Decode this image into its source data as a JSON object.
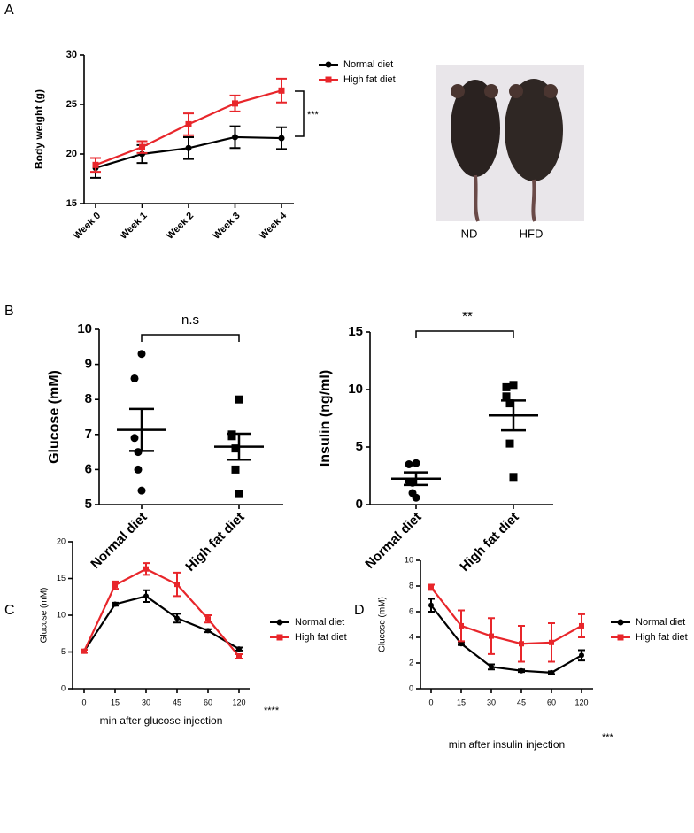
{
  "chart_data": [
    {
      "type": "line",
      "panel_label": "A",
      "y_label": "Body weight (g)",
      "categories": [
        "Week 0",
        "Week 1",
        "Week 2",
        "Week 3",
        "Week 4"
      ],
      "ylim": [
        15,
        30
      ],
      "yticks": [
        15,
        20,
        25,
        30
      ],
      "series": [
        {
          "name": "Normal diet",
          "color": "#000000",
          "marker": "circle",
          "values": [
            18.6,
            20.0,
            20.6,
            21.7,
            21.6
          ],
          "errors": [
            1.0,
            0.9,
            1.1,
            1.1,
            1.1
          ]
        },
        {
          "name": "High fat diet",
          "color": "#e8262b",
          "marker": "square",
          "values": [
            18.9,
            20.7,
            23.0,
            25.1,
            26.4
          ],
          "errors": [
            0.7,
            0.6,
            1.1,
            0.8,
            1.2
          ]
        }
      ],
      "annotation": "***"
    },
    {
      "type": "dot",
      "panel_label": "B",
      "y_label": "Glucose (mM)",
      "categories": [
        "Normal diet",
        "High fat diet"
      ],
      "markers": [
        "circle",
        "square"
      ],
      "ylim": [
        5,
        10
      ],
      "yticks": [
        5,
        6,
        7,
        8,
        9,
        10
      ],
      "points": [
        [
          9.3,
          8.6,
          6.9,
          6.5,
          6.0,
          5.4
        ],
        [
          8.0,
          7.0,
          6.95,
          6.6,
          6.0,
          5.3
        ]
      ],
      "mean": [
        7.13,
        6.65
      ],
      "sem": [
        0.6,
        0.37
      ],
      "annotation": "n.s"
    },
    {
      "type": "dot",
      "y_label": "Insulin (ng/ml)",
      "categories": [
        "Normal diet",
        "High fat diet"
      ],
      "markers": [
        "circle",
        "square"
      ],
      "ylim": [
        0,
        15
      ],
      "yticks": [
        0,
        5,
        10,
        15
      ],
      "points": [
        [
          3.6,
          3.5,
          2.0,
          1.9,
          1.0,
          0.6
        ],
        [
          10.4,
          10.2,
          9.4,
          8.8,
          5.3,
          2.4
        ]
      ],
      "mean": [
        2.25,
        7.75
      ],
      "sem": [
        0.55,
        1.3
      ],
      "annotation": "**"
    },
    {
      "type": "line",
      "panel_label": "C",
      "y_label": "Glucose (mM)",
      "x_label": "min after glucose injection",
      "categories": [
        "0",
        "15",
        "30",
        "45",
        "60",
        "120"
      ],
      "ylim": [
        0,
        20
      ],
      "yticks": [
        0,
        5,
        10,
        15,
        20
      ],
      "series": [
        {
          "name": "Normal diet",
          "color": "#000000",
          "marker": "circle",
          "values": [
            5.1,
            11.5,
            12.6,
            9.6,
            7.9,
            5.4
          ],
          "errors": [
            0.2,
            0.2,
            0.8,
            0.6,
            0.2,
            0.2
          ]
        },
        {
          "name": "High fat diet",
          "color": "#e8262b",
          "marker": "square",
          "values": [
            5.1,
            14.1,
            16.3,
            14.2,
            9.5,
            4.4
          ],
          "errors": [
            0.2,
            0.5,
            0.8,
            1.6,
            0.5,
            0.3
          ]
        }
      ],
      "annotation": "****"
    },
    {
      "type": "line",
      "panel_label": "D",
      "y_label": "Glucose (mM)",
      "x_label": "min after insulin injection",
      "categories": [
        "0",
        "15",
        "30",
        "45",
        "60",
        "120"
      ],
      "ylim": [
        0,
        10
      ],
      "yticks": [
        0,
        2,
        4,
        6,
        8,
        10
      ],
      "series": [
        {
          "name": "Normal diet",
          "color": "#000000",
          "marker": "circle",
          "values": [
            6.5,
            3.5,
            1.7,
            1.4,
            1.25,
            2.6
          ],
          "errors": [
            0.5,
            0.1,
            0.2,
            0.1,
            0.1,
            0.4
          ]
        },
        {
          "name": "High fat diet",
          "color": "#e8262b",
          "marker": "square",
          "values": [
            7.9,
            4.9,
            4.1,
            3.5,
            3.6,
            4.9
          ],
          "errors": [
            0.2,
            1.2,
            1.4,
            1.4,
            1.5,
            0.9
          ]
        }
      ],
      "annotation": "***"
    }
  ],
  "photo": {
    "labels": [
      "ND",
      "HFD"
    ]
  }
}
